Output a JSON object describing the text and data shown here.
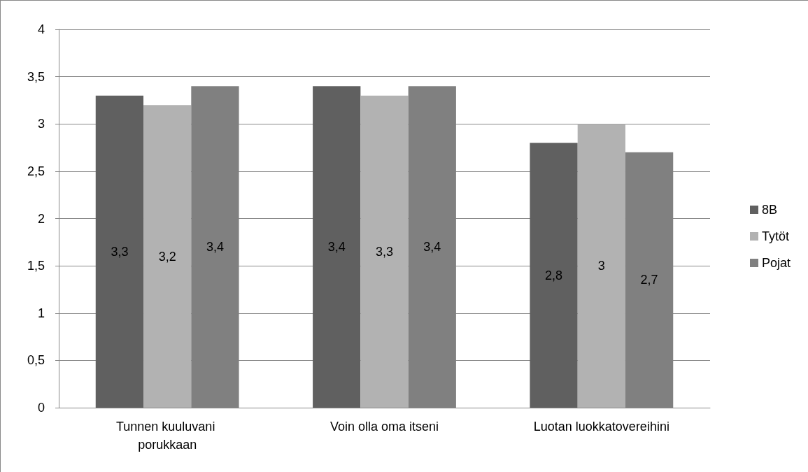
{
  "chart_data": {
    "type": "bar",
    "categories": [
      "Tunnen kuuluvani porukkaan",
      "Voin olla oma itseni",
      "Luotan luokkatovereihini"
    ],
    "series": [
      {
        "name": "8B",
        "color": "#606060",
        "values": [
          3.3,
          3.4,
          2.8
        ],
        "value_labels": [
          "3,3",
          "3,4",
          "2,8"
        ]
      },
      {
        "name": "Tytöt",
        "color": "#b2b2b2",
        "values": [
          3.2,
          3.3,
          3.0
        ],
        "value_labels": [
          "3,2",
          "3,3",
          "3"
        ]
      },
      {
        "name": "Pojat",
        "color": "#808080",
        "values": [
          3.4,
          3.4,
          2.7
        ],
        "value_labels": [
          "3,4",
          "3,4",
          "2,7"
        ]
      }
    ],
    "ylim": [
      0,
      4
    ],
    "yticks": [
      0,
      {
        "value": 0.5,
        "label": "0,5"
      },
      1,
      {
        "value": 1.5,
        "label": "1,5"
      },
      2,
      {
        "value": 2.5,
        "label": "2,5"
      },
      3,
      {
        "value": 3.5,
        "label": "3,5"
      },
      4
    ],
    "grid": "y",
    "legend": "right"
  }
}
